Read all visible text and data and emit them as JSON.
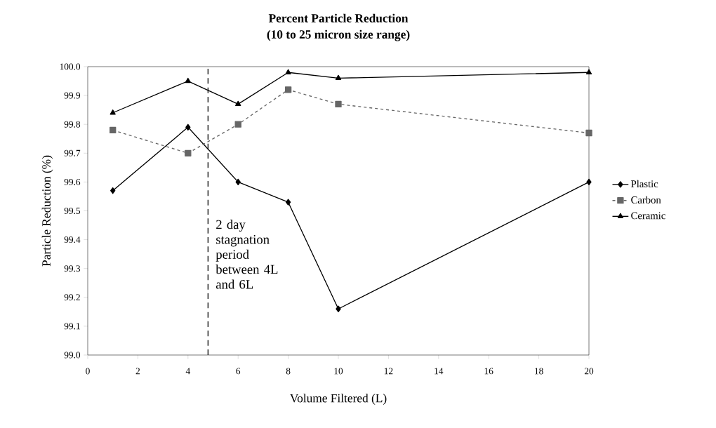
{
  "chart_data": {
    "type": "line",
    "title": "Percent Particle Reduction",
    "subtitle": "(10 to 25 micron size range)",
    "xlabel": "Volume Filtered (L)",
    "ylabel": "Particle Reduction (%)",
    "x": [
      1,
      4,
      6,
      8,
      10,
      20
    ],
    "series": [
      {
        "name": "Plastic",
        "color": "#000000",
        "marker": "diamond",
        "line_style": "solid",
        "values": [
          99.57,
          99.79,
          99.6,
          99.53,
          99.16,
          99.6
        ]
      },
      {
        "name": "Carbon",
        "color": "#666666",
        "marker": "square",
        "line_style": "dashed",
        "values": [
          99.78,
          99.7,
          99.8,
          99.92,
          99.87,
          99.77
        ]
      },
      {
        "name": "Ceramic",
        "color": "#000000",
        "marker": "triangle",
        "line_style": "solid",
        "values": [
          99.84,
          99.95,
          99.87,
          99.98,
          99.96,
          99.98
        ]
      }
    ],
    "xlim": [
      0,
      20
    ],
    "xticks": [
      0,
      2,
      4,
      6,
      8,
      10,
      12,
      14,
      16,
      18,
      20
    ],
    "ylim": [
      99.0,
      100.0
    ],
    "yticks": [
      {
        "value": 99.0,
        "label": "99.0"
      },
      99.1,
      99.2,
      99.3,
      99.4,
      99.5,
      99.6,
      99.7,
      99.8,
      99.9,
      {
        "value": 100.0,
        "label": "100.0"
      }
    ],
    "ref_lines": [
      {
        "axis": "x",
        "value": 4.8,
        "label": "2 day stagnation period between 4L and 6L",
        "color": "#000000",
        "line_style": "dashed"
      }
    ],
    "grid": false,
    "legend": "right"
  }
}
